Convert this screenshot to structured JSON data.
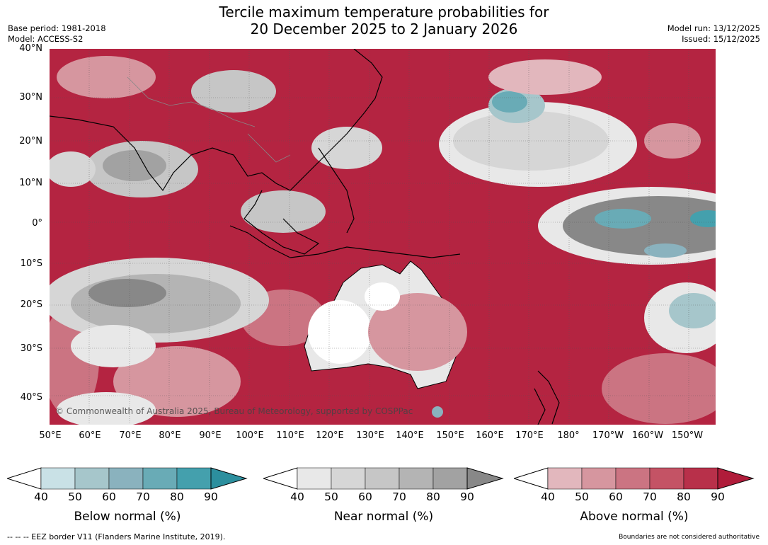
{
  "header": {
    "title_line1": "Tercile maximum temperature probabilities for",
    "title_line2": "20 December 2025 to 2 January 2026",
    "base_period": "Base period: 1981-2018",
    "model": "Model: ACCESS-S2",
    "model_run": "Model run: 13/12/2025",
    "issued": "Issued: 15/12/2025"
  },
  "map": {
    "lat_labels": [
      "40°N",
      "30°N",
      "20°N",
      "10°N",
      "0°",
      "10°S",
      "20°S",
      "30°S",
      "40°S"
    ],
    "lon_labels": [
      "50°E",
      "60°E",
      "70°E",
      "80°E",
      "90°E",
      "100°E",
      "110°E",
      "120°E",
      "130°E",
      "140°E",
      "150°E",
      "160°E",
      "170°E",
      "180°",
      "170°W",
      "160°W",
      "150°W"
    ],
    "copyright": "© Commonwealth of Australia 2025, Bureau of Meteorology, supported by COSPPac",
    "colors": {
      "above_normal": "#b01c3a",
      "near_normal_dark": "#888888",
      "below_normal": "#3f9aa8",
      "background": "#ffffff"
    }
  },
  "legends": [
    {
      "label": "Below normal (%)",
      "ticks": [
        "40",
        "50",
        "60",
        "70",
        "80",
        "90"
      ],
      "colors": [
        "#c9e1e6",
        "#a6c6cb",
        "#8ab2be",
        "#69abb6",
        "#44a0ad",
        "#2c8f9e"
      ]
    },
    {
      "label": "Near normal (%)",
      "ticks": [
        "40",
        "50",
        "60",
        "70",
        "80",
        "90"
      ],
      "colors": [
        "#e8e8e8",
        "#d6d6d6",
        "#c6c6c6",
        "#b4b4b4",
        "#a2a2a2",
        "#888888"
      ]
    },
    {
      "label": "Above normal (%)",
      "ticks": [
        "40",
        "50",
        "60",
        "70",
        "80",
        "90"
      ],
      "colors": [
        "#e2b7bd",
        "#d6969f",
        "#cb7482",
        "#c45365",
        "#b8304a",
        "#b01c3a"
      ]
    }
  ],
  "footer": {
    "eez_note": "--  --  -- EEZ border V11 (Flanders Marine Institute, 2019).",
    "boundary_note": "Boundaries are not considered authoritative"
  }
}
